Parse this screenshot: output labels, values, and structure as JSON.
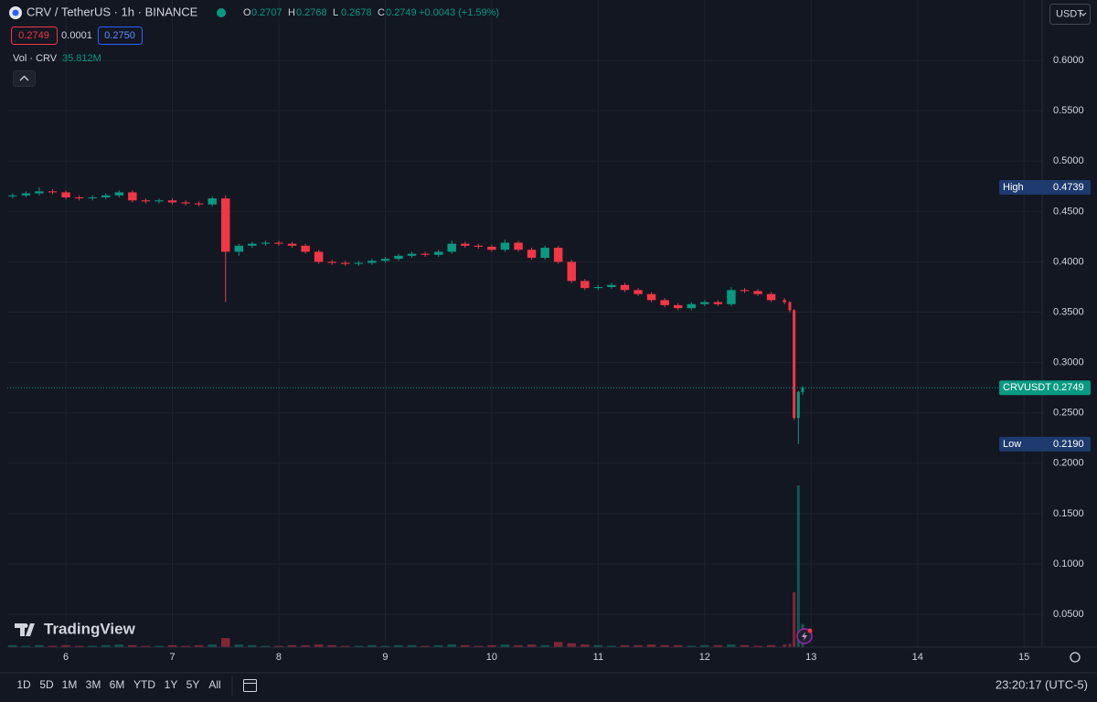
{
  "header": {
    "symbol": "CRV / TetherUS · 1h · BINANCE",
    "ohlc": [
      {
        "label": "O",
        "value": 0.2707
      },
      {
        "label": "H",
        "value": 0.2768
      },
      {
        "label": "L",
        "value": 0.2678
      },
      {
        "label": "C",
        "value": 0.2749
      }
    ],
    "change": "+0.0043 (+1.59%)",
    "bid": 0.2749,
    "spread": 0.0001,
    "ask": {
      "value": 0.275,
      "label": "0.2750"
    },
    "volume_title": "Vol · CRV",
    "volume_value": "35.812M",
    "currency": "USDT"
  },
  "brand": "TradingView",
  "toolbar": {
    "ranges": [
      "1D",
      "5D",
      "1M",
      "3M",
      "6M",
      "YTD",
      "1Y",
      "5Y",
      "All"
    ],
    "clock": "23:20:17 (UTC-5)"
  },
  "chart_data": {
    "type": "candlestick",
    "x": [
      5.5,
      5.625,
      5.75,
      5.875,
      6,
      6.125,
      6.25,
      6.375,
      6.5,
      6.625,
      6.75,
      6.875,
      7,
      7.125,
      7.25,
      7.375,
      7.5,
      7.625,
      7.75,
      7.875,
      8,
      8.125,
      8.25,
      8.375,
      8.5,
      8.625,
      8.75,
      8.875,
      9,
      9.125,
      9.25,
      9.375,
      9.5,
      9.625,
      9.75,
      9.875,
      10,
      10.125,
      10.25,
      10.375,
      10.5,
      10.625,
      10.75,
      10.875,
      11,
      11.125,
      11.25,
      11.375,
      11.5,
      11.625,
      11.75,
      11.875,
      12,
      12.125,
      12.25,
      12.375,
      12.5,
      12.625,
      12.75,
      12.8,
      12.84,
      12.88,
      12.92
    ],
    "open": [
      0.465,
      0.466,
      0.468,
      0.47,
      0.469,
      0.464,
      0.463,
      0.464,
      0.466,
      0.469,
      0.461,
      0.46,
      0.461,
      0.459,
      0.458,
      0.457,
      0.463,
      0.41,
      0.416,
      0.418,
      0.419,
      0.418,
      0.416,
      0.41,
      0.4,
      0.399,
      0.398,
      0.399,
      0.401,
      0.403,
      0.406,
      0.408,
      0.407,
      0.41,
      0.418,
      0.416,
      0.415,
      0.412,
      0.419,
      0.412,
      0.404,
      0.414,
      0.4,
      0.381,
      0.374,
      0.375,
      0.377,
      0.372,
      0.368,
      0.362,
      0.357,
      0.354,
      0.358,
      0.36,
      0.358,
      0.372,
      0.371,
      0.368,
      0.362,
      0.36,
      0.352,
      0.245,
      0.2707
    ],
    "high": [
      0.468,
      0.47,
      0.4739,
      0.472,
      0.471,
      0.466,
      0.466,
      0.468,
      0.471,
      0.471,
      0.463,
      0.463,
      0.463,
      0.461,
      0.46,
      0.465,
      0.466,
      0.418,
      0.42,
      0.421,
      0.421,
      0.42,
      0.418,
      0.412,
      0.402,
      0.401,
      0.401,
      0.403,
      0.405,
      0.408,
      0.41,
      0.41,
      0.412,
      0.421,
      0.42,
      0.418,
      0.417,
      0.422,
      0.421,
      0.414,
      0.416,
      0.416,
      0.402,
      0.383,
      0.377,
      0.379,
      0.379,
      0.374,
      0.37,
      0.364,
      0.359,
      0.36,
      0.362,
      0.362,
      0.375,
      0.374,
      0.373,
      0.37,
      0.364,
      0.361,
      0.353,
      0.272,
      0.2768
    ],
    "low": [
      0.463,
      0.464,
      0.466,
      0.467,
      0.462,
      0.461,
      0.461,
      0.462,
      0.464,
      0.459,
      0.458,
      0.458,
      0.457,
      0.456,
      0.455,
      0.455,
      0.36,
      0.406,
      0.414,
      0.416,
      0.416,
      0.414,
      0.408,
      0.398,
      0.397,
      0.396,
      0.396,
      0.397,
      0.399,
      0.401,
      0.404,
      0.405,
      0.405,
      0.408,
      0.414,
      0.413,
      0.41,
      0.41,
      0.41,
      0.402,
      0.402,
      0.398,
      0.379,
      0.372,
      0.372,
      0.373,
      0.37,
      0.366,
      0.36,
      0.355,
      0.352,
      0.352,
      0.356,
      0.356,
      0.356,
      0.369,
      0.366,
      0.36,
      0.358,
      0.35,
      0.243,
      0.219,
      0.2678
    ],
    "close": [
      0.466,
      0.468,
      0.47,
      0.469,
      0.464,
      0.463,
      0.464,
      0.466,
      0.469,
      0.461,
      0.46,
      0.461,
      0.459,
      0.458,
      0.457,
      0.463,
      0.41,
      0.416,
      0.418,
      0.419,
      0.418,
      0.416,
      0.41,
      0.4,
      0.399,
      0.398,
      0.399,
      0.401,
      0.403,
      0.406,
      0.408,
      0.407,
      0.41,
      0.418,
      0.416,
      0.415,
      0.412,
      0.419,
      0.412,
      0.404,
      0.414,
      0.4,
      0.381,
      0.374,
      0.375,
      0.377,
      0.372,
      0.368,
      0.362,
      0.357,
      0.354,
      0.358,
      0.36,
      0.358,
      0.372,
      0.371,
      0.368,
      0.362,
      0.36,
      0.352,
      0.245,
      0.2707,
      0.2749
    ],
    "volume": [
      3,
      2,
      3,
      2,
      3,
      2,
      2,
      3,
      4,
      3,
      2,
      2,
      3,
      2,
      3,
      4,
      14,
      4,
      3,
      2,
      2,
      3,
      3,
      4,
      3,
      2,
      2,
      3,
      2,
      3,
      3,
      2,
      3,
      4,
      3,
      2,
      3,
      4,
      3,
      4,
      3,
      8,
      6,
      4,
      3,
      2,
      3,
      3,
      4,
      3,
      3,
      2,
      3,
      3,
      4,
      3,
      2,
      3,
      4,
      5,
      85,
      250,
      35.812
    ],
    "up_color": "#089981",
    "down_color": "#f23645",
    "xlim": [
      5.45,
      15.17
    ],
    "xticks": [
      6,
      7,
      8,
      9,
      10,
      11,
      12,
      13,
      14,
      15
    ],
    "ylim": [
      0.0174,
      0.66
    ],
    "yticks": [
      {
        "value": 0.05,
        "label": "0.0500"
      },
      {
        "value": 0.1,
        "label": "0.1000"
      },
      {
        "value": 0.15,
        "label": "0.1500"
      },
      {
        "value": 0.2,
        "label": "0.2000"
      },
      {
        "value": 0.25,
        "label": "0.2500"
      },
      {
        "value": 0.3,
        "label": "0.3000"
      },
      {
        "value": 0.35,
        "label": "0.3500"
      },
      {
        "value": 0.4,
        "label": "0.4000"
      },
      {
        "value": 0.45,
        "label": "0.4500"
      },
      {
        "value": 0.5,
        "label": "0.5000"
      },
      {
        "value": 0.55,
        "label": "0.5500"
      },
      {
        "value": 0.6,
        "label": "0.6000"
      }
    ],
    "y2lim": [
      0,
      1000
    ],
    "grid": true,
    "high_marker": {
      "label": "High",
      "value": 0.4739
    },
    "low_marker": {
      "label": "Low",
      "value": 0.219,
      "value_label": "0.2190"
    },
    "last_price": {
      "label": "CRVUSDT",
      "value": 0.2749
    }
  }
}
